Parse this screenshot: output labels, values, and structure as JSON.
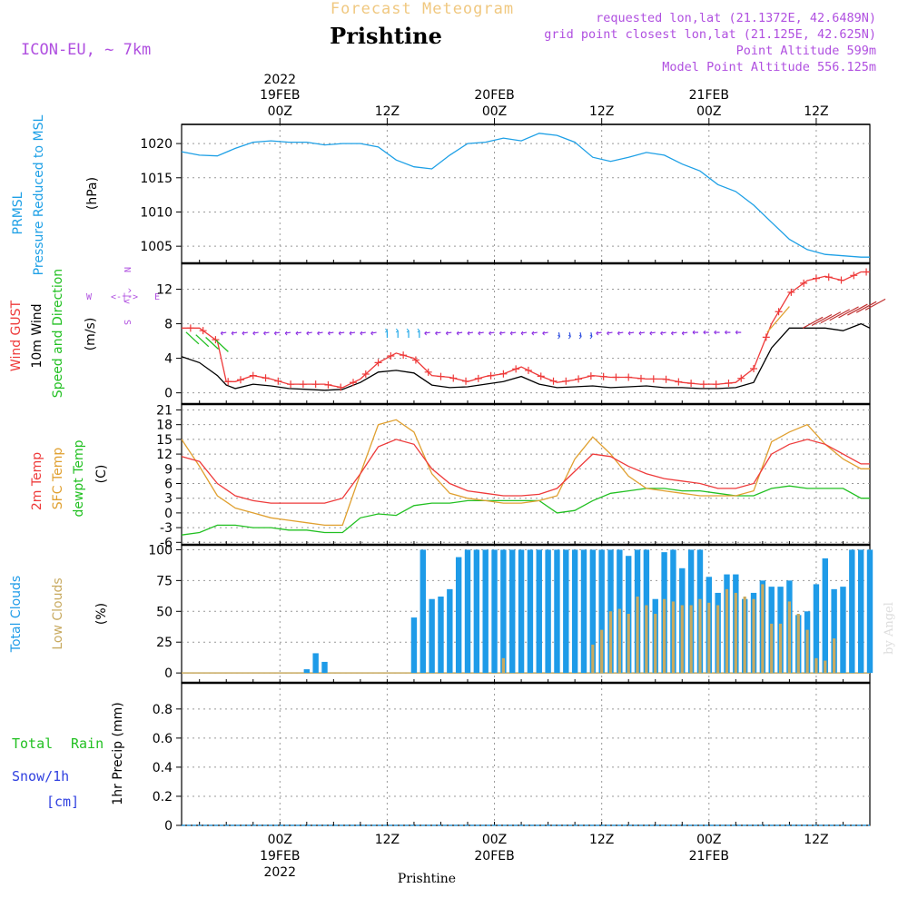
{
  "header": {
    "subtitle": "Forecast Meteogram",
    "city": "Prishtine",
    "model": "ICON-EU, ~ 7km",
    "requested": "requested lon,lat (21.1372E, 42.6489N)",
    "grid": "grid point closest lon,lat (21.125E, 42.625N)",
    "point_alt": "Point Altitude 599m",
    "model_alt": "Model Point Altitude 556.125m",
    "footer": "Prishtine",
    "credit": "by Angel"
  },
  "colors": {
    "pressure": "#1ea0e6",
    "gust": "#ee3a3a",
    "wind10": "#000000",
    "wind_dir": "#22c022",
    "t2m": "#ee3a3a",
    "sfc": "#e0a030",
    "dewpt": "#22c022",
    "total_cloud": "#1e9be8",
    "low_cloud": "#c8aa60",
    "purple": "#b050e0",
    "rain": "#22c022",
    "snow": "#3040e0"
  },
  "panels": {
    "pressure": {
      "title1": "PRMSL",
      "title2": "Pressure Reduced to MSL",
      "unit": "(hPa)"
    },
    "wind": {
      "t1": "Wind GUST",
      "t2": "10m Wind",
      "t3": "Speed and Direction",
      "unit": "(m/s)",
      "compass": {
        "n": "N",
        "s": "S",
        "w": "W",
        "e": "E",
        "glyph_h": "<-|->",
        "glyph_v": "^|v"
      }
    },
    "temp": {
      "t1": "2m Temp",
      "t2": "SFC Temp",
      "t3": "dewpt Temp",
      "unit": "(C)"
    },
    "cloud": {
      "t1": "Total Clouds",
      "t2": "Low Clouds",
      "unit": "(%)"
    },
    "precip": {
      "t1": "Total",
      "t1b": "Rain",
      "t2": "Snow/1h",
      "t3": "[cm]",
      "unit": "1hr Precip (mm)"
    }
  },
  "time_axis": {
    "top": [
      {
        "hour": "00Z",
        "date": "19FEB",
        "year": "2022"
      },
      {
        "hour": "12Z",
        "date": "",
        "year": ""
      },
      {
        "hour": "00Z",
        "date": "20FEB",
        "year": ""
      },
      {
        "hour": "12Z",
        "date": "",
        "year": ""
      },
      {
        "hour": "00Z",
        "date": "21FEB",
        "year": ""
      },
      {
        "hour": "12Z",
        "date": "",
        "year": ""
      }
    ],
    "bottom": [
      {
        "hour": "00Z",
        "date": "19FEB",
        "year": "2022"
      },
      {
        "hour": "12Z",
        "date": "",
        "year": ""
      },
      {
        "hour": "00Z",
        "date": "20FEB",
        "year": ""
      },
      {
        "hour": "12Z",
        "date": "",
        "year": ""
      },
      {
        "hour": "00Z",
        "date": "21FEB",
        "year": ""
      },
      {
        "hour": "12Z",
        "date": "",
        "year": ""
      }
    ]
  },
  "chart_data": [
    {
      "type": "line",
      "title": "PRMSL Pressure Reduced to MSL",
      "ylabel": "(hPa)",
      "x_hours": [
        -11,
        -9,
        -7,
        -5,
        -3,
        -1,
        1,
        3,
        5,
        7,
        9,
        11,
        13,
        15,
        17,
        19,
        21,
        23,
        25,
        27,
        29,
        31,
        33,
        35,
        37,
        39,
        41,
        43,
        45,
        47,
        49,
        51,
        53,
        55,
        57,
        59,
        61,
        63,
        65,
        66
      ],
      "values": [
        1018.8,
        1018.3,
        1018.2,
        1019.3,
        1020.2,
        1020.4,
        1020.2,
        1020.2,
        1019.8,
        1020.0,
        1020.0,
        1019.5,
        1017.6,
        1016.6,
        1016.3,
        1018.3,
        1020.0,
        1020.2,
        1020.8,
        1020.4,
        1021.5,
        1021.2,
        1020.2,
        1018.0,
        1017.4,
        1018.0,
        1018.7,
        1018.3,
        1017.0,
        1016.0,
        1014.0,
        1013.0,
        1011.0,
        1008.5,
        1006.0,
        1004.5,
        1003.8,
        1003.6,
        1003.4,
        1003.4
      ],
      "yticks": [
        1005,
        1010,
        1015,
        1020
      ],
      "ylim": [
        1002.5,
        1022.8
      ]
    },
    {
      "type": "line",
      "title": "Wind GUST / 10m Wind Speed and Direction",
      "ylabel": "(m/s)",
      "x_hours": [
        -11,
        -9,
        -7,
        -6,
        -5,
        -3,
        -1,
        1,
        3,
        5,
        7,
        9,
        11,
        13,
        15,
        17,
        19,
        21,
        23,
        25,
        27,
        29,
        31,
        33,
        35,
        37,
        39,
        41,
        43,
        45,
        47,
        49,
        51,
        53,
        55,
        57,
        59,
        61,
        63,
        65,
        66
      ],
      "series": [
        {
          "name": "Wind GUST",
          "values": [
            7.5,
            7.5,
            6.0,
            1.3,
            1.3,
            2.0,
            1.6,
            1.0,
            1.0,
            1.0,
            0.6,
            1.6,
            3.5,
            4.6,
            4.0,
            2.0,
            1.8,
            1.3,
            1.9,
            2.2,
            3.0,
            2.0,
            1.2,
            1.5,
            2.0,
            1.8,
            1.8,
            1.6,
            1.6,
            1.2,
            1.0,
            1.0,
            1.2,
            2.8,
            8.0,
            11.5,
            13.0,
            13.5,
            13.0,
            14.0,
            14.0
          ]
        },
        {
          "name": "10m Wind",
          "values": [
            4.2,
            3.5,
            2.0,
            0.9,
            0.5,
            1.0,
            0.8,
            0.5,
            0.4,
            0.3,
            0.4,
            1.2,
            2.4,
            2.6,
            2.3,
            0.9,
            0.6,
            0.7,
            1.0,
            1.3,
            1.9,
            1.0,
            0.6,
            0.7,
            0.8,
            0.6,
            0.7,
            0.8,
            0.6,
            0.6,
            0.5,
            0.5,
            0.6,
            1.2,
            5.2,
            7.5,
            7.5,
            7.5,
            7.2,
            8.0,
            7.5
          ]
        }
      ],
      "yticks": [
        0,
        4,
        8,
        12
      ],
      "ylim": [
        -1.3,
        15.0
      ]
    },
    {
      "type": "line",
      "title": "2m Temp / SFC Temp / dewpt Temp",
      "ylabel": "(C)",
      "x_hours": [
        -11,
        -9,
        -7,
        -5,
        -3,
        -1,
        1,
        3,
        5,
        7,
        9,
        11,
        13,
        15,
        17,
        19,
        21,
        23,
        25,
        27,
        29,
        31,
        33,
        35,
        37,
        39,
        41,
        43,
        45,
        47,
        49,
        51,
        53,
        55,
        57,
        59,
        61,
        63,
        65,
        66
      ],
      "series": [
        {
          "name": "2m Temp",
          "values": [
            11.5,
            10.5,
            6.0,
            3.5,
            2.5,
            2.0,
            2.0,
            2.0,
            2.0,
            3.0,
            8.0,
            13.5,
            15.0,
            14.0,
            9.0,
            6.0,
            4.5,
            4.0,
            3.5,
            3.5,
            3.8,
            5.0,
            8.5,
            12.0,
            11.5,
            9.5,
            8.0,
            7.0,
            6.5,
            6.0,
            5.0,
            5.0,
            6.0,
            12.0,
            14.0,
            15.0,
            14.0,
            12.0,
            10.0,
            10.0
          ]
        },
        {
          "name": "SFC Temp",
          "values": [
            15.0,
            9.5,
            3.5,
            1.0,
            0.0,
            -1.0,
            -1.5,
            -2.0,
            -2.5,
            -2.5,
            8.0,
            18.0,
            19.0,
            16.5,
            8.0,
            4.0,
            3.0,
            2.5,
            2.0,
            2.0,
            2.5,
            3.5,
            11.0,
            15.5,
            12.0,
            7.5,
            5.0,
            4.5,
            4.0,
            3.5,
            3.5,
            3.5,
            4.5,
            14.5,
            16.5,
            18.0,
            14.0,
            11.0,
            9.0,
            9.0
          ]
        },
        {
          "name": "dewpt Temp",
          "values": [
            -4.5,
            -4.0,
            -2.5,
            -2.5,
            -3.0,
            -3.0,
            -3.5,
            -3.5,
            -4.0,
            -4.0,
            -1.0,
            -0.2,
            -0.5,
            1.5,
            2.0,
            2.0,
            2.5,
            2.5,
            2.5,
            2.5,
            2.5,
            0.0,
            0.5,
            2.5,
            4.0,
            4.5,
            5.0,
            5.0,
            4.5,
            4.5,
            4.0,
            3.5,
            3.5,
            5.0,
            5.5,
            5.0,
            5.0,
            5.0,
            3.0,
            3.0
          ]
        }
      ],
      "yticks": [
        -6,
        -3,
        0,
        3,
        6,
        9,
        12,
        15,
        18,
        21
      ],
      "ylim": [
        -6.5,
        22.2
      ]
    },
    {
      "type": "bar",
      "title": "Total Clouds / Low Clouds",
      "ylabel": "(%)",
      "x_hours": [
        -11,
        -10,
        -9,
        -8,
        -7,
        -6,
        -5,
        -4,
        -3,
        -2,
        -1,
        0,
        1,
        2,
        3,
        4,
        5,
        6,
        7,
        8,
        9,
        10,
        11,
        12,
        13,
        14,
        15,
        16,
        17,
        18,
        19,
        20,
        21,
        22,
        23,
        24,
        25,
        26,
        27,
        28,
        29,
        30,
        31,
        32,
        33,
        34,
        35,
        36,
        37,
        38,
        39,
        40,
        41,
        42,
        43,
        44,
        45,
        46,
        47,
        48,
        49,
        50,
        51,
        52,
        53,
        54,
        55,
        56,
        57,
        58,
        59,
        60,
        61,
        62,
        63,
        64,
        65,
        66
      ],
      "series": [
        {
          "name": "Total Clouds",
          "values": [
            0,
            0,
            0,
            0,
            0,
            0,
            0,
            0,
            0,
            0,
            0,
            0,
            0,
            0,
            3,
            16,
            9,
            0,
            0,
            0,
            0,
            0,
            0,
            0,
            0,
            0,
            45,
            100,
            60,
            62,
            68,
            94,
            100,
            100,
            100,
            100,
            100,
            100,
            100,
            100,
            100,
            100,
            100,
            100,
            100,
            100,
            100,
            100,
            100,
            100,
            95,
            100,
            100,
            60,
            98,
            100,
            85,
            100,
            100,
            78,
            65,
            80,
            80,
            60,
            65,
            75,
            70,
            70,
            75,
            47,
            50,
            72,
            93,
            68,
            70,
            100,
            100,
            100
          ]
        },
        {
          "name": "Low Clouds",
          "values": [
            0,
            0,
            0,
            0,
            0,
            0,
            0,
            0,
            0,
            0,
            0,
            0,
            0,
            0,
            0,
            0,
            0,
            0,
            0,
            0,
            0,
            0,
            0,
            0,
            0,
            0,
            0,
            0,
            0,
            0,
            0,
            0,
            0,
            0,
            0,
            0,
            12,
            0,
            0,
            0,
            0,
            0,
            0,
            0,
            0,
            0,
            23,
            35,
            50,
            52,
            48,
            62,
            55,
            48,
            60,
            58,
            55,
            55,
            60,
            57,
            55,
            68,
            65,
            62,
            60,
            72,
            40,
            40,
            58,
            48,
            35,
            12,
            10,
            28,
            0,
            0,
            0,
            0
          ]
        }
      ],
      "yticks": [
        0,
        25,
        50,
        75,
        100
      ],
      "ylim": [
        -8,
        104
      ]
    },
    {
      "type": "line",
      "title": "Total Rain / Snow/1h",
      "ylabel": "1hr Precip (mm)",
      "x_hours": [
        -11,
        66
      ],
      "series": [
        {
          "name": "Total Rain",
          "values": [
            0,
            0
          ]
        },
        {
          "name": "Snow/1h",
          "values": [
            0,
            0
          ]
        }
      ],
      "yticks": [
        0,
        0.2,
        0.4,
        0.6,
        0.8
      ],
      "ylim": [
        0,
        0.98
      ]
    }
  ]
}
